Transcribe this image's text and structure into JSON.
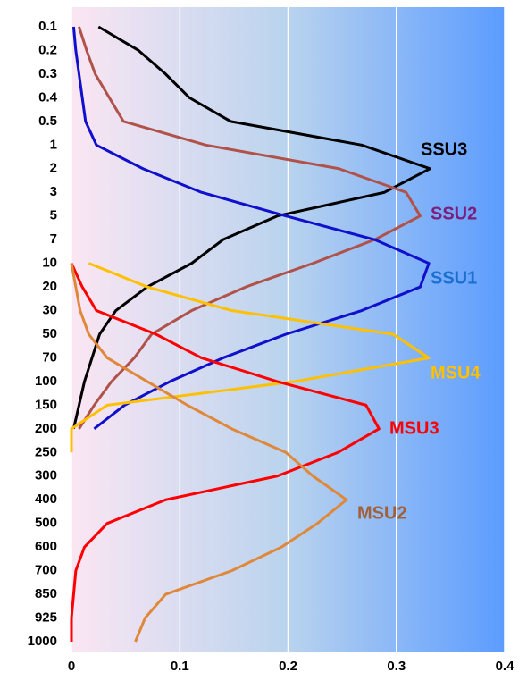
{
  "chart_data": {
    "type": "line",
    "orientation": "horizontal",
    "categories": [
      "0.1",
      "0.2",
      "0.3",
      "0.4",
      "0.5",
      "1",
      "2",
      "3",
      "5",
      "7",
      "10",
      "20",
      "30",
      "50",
      "70",
      "100",
      "150",
      "200",
      "250",
      "300",
      "400",
      "500",
      "600",
      "700",
      "850",
      "925",
      "1000"
    ],
    "xlim": [
      0,
      0.4
    ],
    "xticks": [
      0,
      0.1,
      0.2,
      0.3,
      0.4
    ],
    "grid": true,
    "series": [
      {
        "name": "SSU3",
        "color": "#000000",
        "label_color": "#000000",
        "values": [
          0.025,
          0.062,
          0.087,
          0.109,
          0.147,
          0.268,
          0.331,
          0.289,
          0.19,
          0.14,
          0.111,
          0.07,
          0.041,
          0.026,
          0.019,
          0.012,
          0.007,
          0.002,
          null,
          null,
          null,
          null,
          null,
          null,
          null,
          null,
          null
        ]
      },
      {
        "name": "SSU2",
        "color": "#b0524a",
        "label_color": "#7a1f7a",
        "values": [
          0.007,
          0.014,
          0.022,
          0.035,
          0.048,
          0.124,
          0.247,
          0.309,
          0.322,
          0.28,
          0.223,
          0.161,
          0.111,
          0.074,
          0.058,
          0.037,
          0.021,
          0.007,
          null,
          null,
          null,
          null,
          null,
          null,
          null,
          null,
          null
        ]
      },
      {
        "name": "SSU1",
        "color": "#1010cc",
        "label_color": "#1a6fd0",
        "values": [
          0.002,
          0.004,
          0.007,
          0.01,
          0.013,
          0.023,
          0.066,
          0.12,
          0.198,
          0.28,
          0.33,
          0.322,
          0.268,
          0.198,
          0.14,
          0.091,
          0.049,
          0.021,
          null,
          null,
          null,
          null,
          null,
          null,
          null,
          null,
          null
        ]
      },
      {
        "name": "MSU4",
        "color": "#ffc000",
        "label_color": "#ffc000",
        "values": [
          null,
          null,
          null,
          null,
          null,
          null,
          null,
          null,
          null,
          null,
          0.016,
          0.07,
          0.148,
          0.297,
          0.33,
          0.206,
          0.033,
          0.0,
          0.0,
          null,
          null,
          null,
          null,
          null,
          null,
          null,
          null
        ]
      },
      {
        "name": "MSU3",
        "color": "#ff0000",
        "label_color": "#ff0000",
        "values": [
          null,
          null,
          null,
          null,
          null,
          null,
          null,
          null,
          null,
          null,
          0,
          0.01,
          0.023,
          0.078,
          0.12,
          0.19,
          0.272,
          0.284,
          0.246,
          0.19,
          0.087,
          0.033,
          0.012,
          0.004,
          0.002,
          0,
          0
        ]
      },
      {
        "name": "MSU2",
        "color": "#e0883a",
        "label_color": "#a0603a",
        "values": [
          null,
          null,
          null,
          null,
          null,
          null,
          null,
          null,
          null,
          null,
          0,
          0.004,
          0.008,
          0.016,
          0.033,
          0.07,
          0.107,
          0.148,
          0.198,
          0.223,
          0.254,
          0.227,
          0.194,
          0.148,
          0.087,
          0.068,
          0.059
        ]
      }
    ]
  }
}
